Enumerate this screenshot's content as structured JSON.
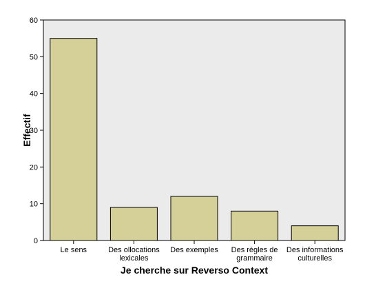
{
  "chart_data": {
    "type": "bar",
    "categories": [
      [
        "Le sens"
      ],
      [
        "Des ollocations",
        "lexicales"
      ],
      [
        "Des exemples"
      ],
      [
        "Des règles de",
        "grammaire"
      ],
      [
        "Des informations",
        "culturelles"
      ]
    ],
    "values": [
      55,
      9,
      12,
      8,
      4
    ],
    "xlabel": "Je cherche sur Reverso Context",
    "ylabel": "Effectif",
    "ylim": [
      0,
      60
    ],
    "yticks": [
      0,
      10,
      20,
      30,
      40,
      50,
      60
    ],
    "grid": false,
    "colors": {
      "bar_fill": "#d4d098",
      "bar_stroke": "#000000",
      "plot_background": "#ebebeb"
    }
  }
}
